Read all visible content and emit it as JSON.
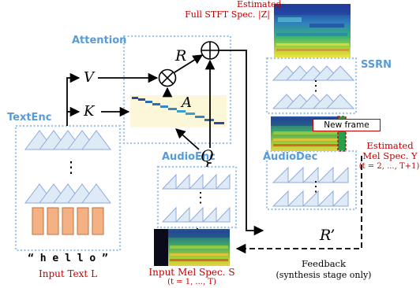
{
  "blocks": {
    "attention": "Attention",
    "textenc": "TextEnc",
    "audioenc": "AudioEnc",
    "audiodec": "AudioDec",
    "ssrn": "SSRN"
  },
  "symbols": {
    "R": "R",
    "V": "V",
    "K": "K",
    "A": "A",
    "Q": "Q",
    "R_prime": "R’",
    "dots": "⋮"
  },
  "texts": {
    "stft_line1": "Estimated",
    "stft_line2": "Full STFT Spec. |Z|",
    "new_frame": "New frame",
    "mel_y_line1": "Estimated",
    "mel_y_line2": "Mel Spec. Y",
    "mel_y_line3": "(t = 2, ..., T+1)",
    "hello": "“ h e l l o ”",
    "input_text": "Input Text L",
    "input_mel_line1": "Input Mel Spec. S",
    "input_mel_line2": "(t = 1, ..., T)",
    "feedback_line1": "Feedback",
    "feedback_line2": "(synthesis stage only)"
  },
  "colors": {
    "block_title": "#5b9bd5",
    "dotted_border": "#9dc3e6",
    "conv_stroke": "#8faadc",
    "conv_fill": "#deebf7",
    "char_embed_fill": "#f4b183",
    "attention_fill": "#fbf7d8",
    "caption_red": "#c00000"
  }
}
